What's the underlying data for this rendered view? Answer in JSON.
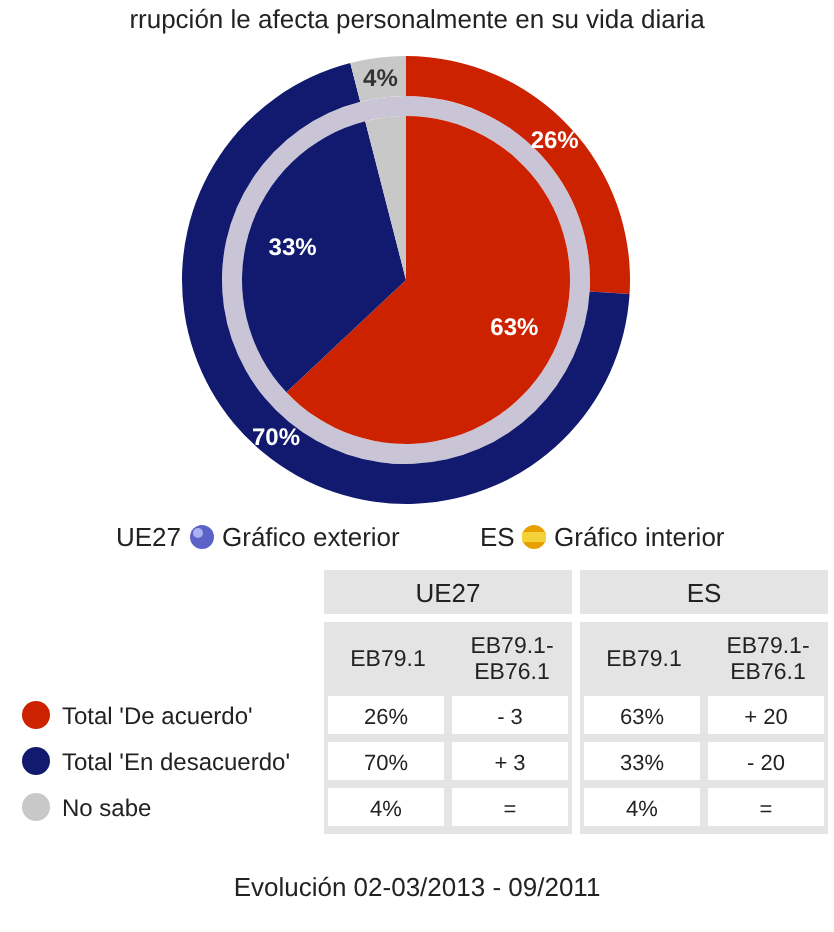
{
  "chart_data": {
    "type": "donut",
    "title": "rrupción le afecta personalmente en su vida diaria",
    "categories": [
      "Total 'De acuerdo'",
      "Total 'En desacuerdo'",
      "No sabe"
    ],
    "colors": [
      "#cc2200",
      "#111a6e",
      "#c8c8c8"
    ],
    "series": [
      {
        "name": "UE27",
        "values": [
          26,
          70,
          4
        ],
        "value_labels": [
          "26%",
          "70%",
          "4%"
        ]
      },
      {
        "name": "ES",
        "type": "pie",
        "values": [
          63,
          33,
          4
        ],
        "value_labels": [
          "63%",
          "33%",
          "4%"
        ]
      }
    ],
    "legend": "bottom",
    "annotations": [
      "Gráfico exterior",
      "Gráfico interior",
      "EB79.1",
      "EB79.1-EB76.1",
      "- 3",
      "+ 3",
      "=",
      "+ 20",
      "- 20",
      "=",
      "Evolución 02-03/2013 - 09/2011"
    ]
  }
}
